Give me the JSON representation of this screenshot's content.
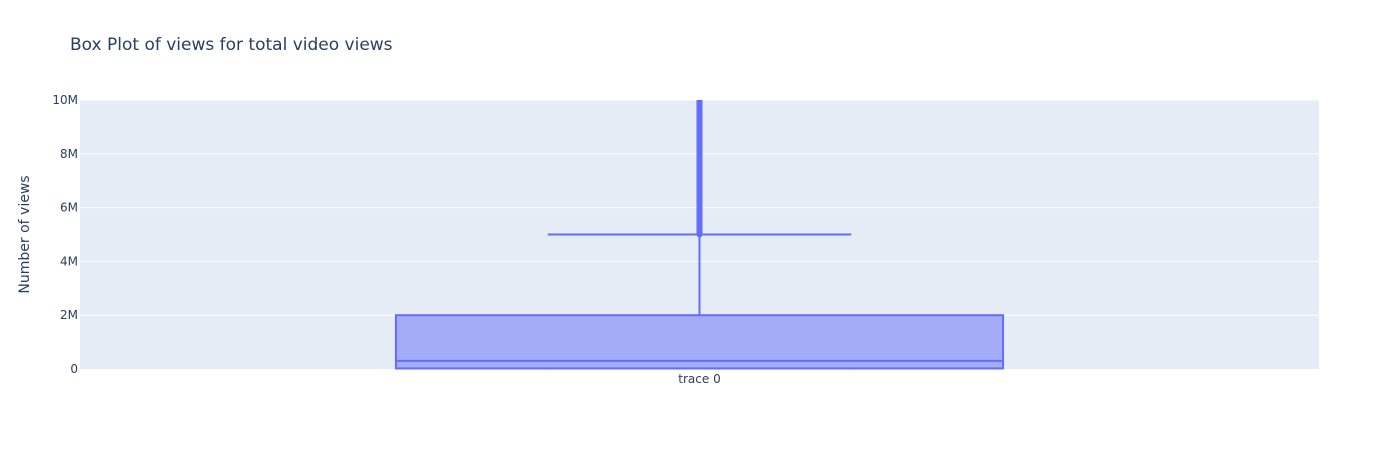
{
  "chart_data": {
    "type": "box",
    "title": "Box Plot of views for total video views",
    "xlabel": "",
    "ylabel": "Number of views",
    "ylim": [
      0,
      10000000
    ],
    "y_ticks": [
      {
        "value": 0,
        "label": "0"
      },
      {
        "value": 2000000,
        "label": "2M"
      },
      {
        "value": 4000000,
        "label": "4M"
      },
      {
        "value": 6000000,
        "label": "6M"
      },
      {
        "value": 8000000,
        "label": "8M"
      },
      {
        "value": 10000000,
        "label": "10M"
      }
    ],
    "categories": [
      "trace 0"
    ],
    "series": [
      {
        "category": "trace 0",
        "lower_fence": 0,
        "q1": 20000,
        "median": 300000,
        "q3": 2000000,
        "upper_fence": 5000000,
        "outliers_range": [
          5000000,
          10000000
        ],
        "color": "#636efa",
        "fill": "#a4abf7"
      }
    ],
    "plot_background": "#e5ecf6",
    "grid": true,
    "legend": "none"
  }
}
